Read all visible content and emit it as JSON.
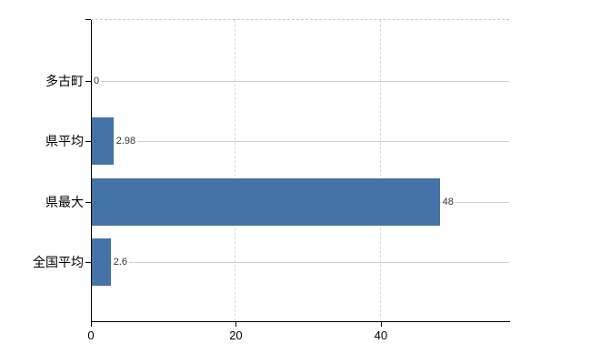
{
  "chart_data": {
    "type": "bar",
    "orientation": "horizontal",
    "title": "",
    "categories": [
      "多古町",
      "県平均",
      "県最大",
      "全国平均"
    ],
    "values": [
      0,
      2.98,
      48,
      2.6
    ],
    "data_labels": [
      "0",
      "2.98",
      "48",
      "2.6"
    ],
    "x_ticks": [
      0,
      20,
      40
    ],
    "x_tick_labels": [
      "0",
      "20",
      "40"
    ],
    "xlim": [
      0,
      57.7
    ],
    "grid": true,
    "legend_position": "none",
    "bar_color": "#4572a7"
  },
  "colors": {
    "bar": "#4572a7",
    "axis": "#000000",
    "gridline_horizontal": "#ccd4c7",
    "gridline_vertical": "#d9d9d9",
    "top_border": "#c9c9c9",
    "value_label_text": "#333333",
    "category_label_text": "#000000",
    "background": "#ffffff"
  }
}
